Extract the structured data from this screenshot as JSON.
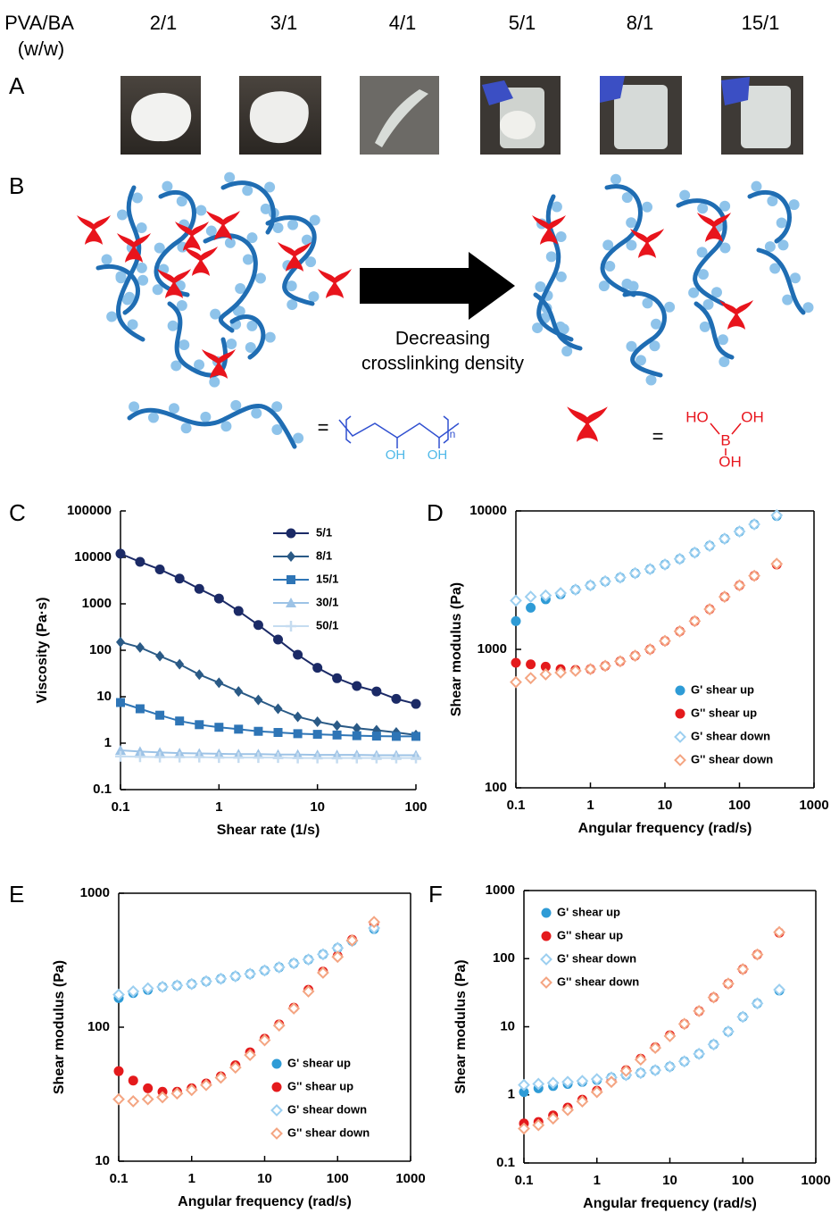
{
  "header": {
    "row_label": "PVA/BA",
    "row_unit": "(w/w)",
    "ratios": [
      "2/1",
      "3/1",
      "4/1",
      "5/1",
      "8/1",
      "15/1"
    ]
  },
  "panel_labels": [
    "A",
    "B",
    "C",
    "D",
    "E",
    "F"
  ],
  "scheme": {
    "arrow_text": [
      "Decreasing",
      "crosslinking density"
    ],
    "equals": "=",
    "pva_oh": "OH",
    "pva_n": "n",
    "ba_ho": "HO",
    "ba_oh": "OH",
    "ba_b": "B"
  },
  "chart_data": [
    {
      "type": "line",
      "x_label": "Shear rate (1/s)",
      "y_label": "Viscosity (Pa·s)",
      "log_x": true,
      "log_y": true,
      "box": false,
      "legend": "upper right",
      "xlim": [
        0.1,
        100
      ],
      "ylim": [
        0.1,
        100000
      ],
      "xticks": [
        0.1,
        1,
        10,
        100
      ],
      "yticks": [
        0.1,
        1,
        10,
        100,
        1000,
        10000,
        100000
      ],
      "x": [
        0.1,
        0.158,
        0.251,
        0.398,
        0.631,
        1,
        1.58,
        2.51,
        3.98,
        6.31,
        10,
        15.8,
        25.1,
        39.8,
        63.1,
        100
      ],
      "series": [
        {
          "name": "5/1",
          "color": "#1b2a66",
          "marker": "circle",
          "values": [
            12000,
            8000,
            5500,
            3500,
            2100,
            1300,
            700,
            350,
            170,
            80,
            42,
            25,
            17,
            13,
            9,
            7
          ]
        },
        {
          "name": "8/1",
          "color": "#2a5a86",
          "marker": "diamond",
          "values": [
            150,
            115,
            75,
            50,
            30,
            20,
            13,
            8.5,
            5.5,
            3.7,
            2.9,
            2.4,
            2.1,
            1.9,
            1.7,
            1.5
          ]
        },
        {
          "name": "15/1",
          "color": "#2e75b6",
          "marker": "square",
          "values": [
            7.5,
            5.5,
            4,
            3,
            2.5,
            2.2,
            2,
            1.8,
            1.7,
            1.6,
            1.55,
            1.5,
            1.45,
            1.42,
            1.4,
            1.4
          ]
        },
        {
          "name": "30/1",
          "color": "#9dc3e6",
          "marker": "triangle",
          "values": [
            0.7,
            0.66,
            0.63,
            0.61,
            0.6,
            0.59,
            0.58,
            0.58,
            0.57,
            0.57,
            0.56,
            0.56,
            0.56,
            0.55,
            0.55,
            0.55
          ]
        },
        {
          "name": "50/1",
          "color": "#c5dcf0",
          "marker": "cross",
          "values": [
            0.52,
            0.51,
            0.5,
            0.5,
            0.5,
            0.49,
            0.49,
            0.49,
            0.49,
            0.48,
            0.48,
            0.48,
            0.48,
            0.48,
            0.48,
            0.48
          ]
        }
      ]
    },
    {
      "type": "scatter",
      "x_label": "Angular frequency (rad/s)",
      "y_label": "Shear modulus (Pa)",
      "log_x": true,
      "log_y": true,
      "box": true,
      "legend": "lower right",
      "xlim": [
        0.1,
        1000
      ],
      "ylim": [
        100,
        10000
      ],
      "xticks": [
        0.1,
        1,
        10,
        100,
        1000
      ],
      "yticks": [
        100,
        1000,
        10000
      ],
      "x": [
        0.1,
        0.158,
        0.251,
        0.398,
        0.631,
        1,
        1.58,
        2.51,
        3.98,
        6.31,
        10,
        15.8,
        25.1,
        39.8,
        63.1,
        100,
        158,
        316
      ],
      "series": [
        {
          "name": "G' shear up",
          "color": "#2e9bd6",
          "marker": "circle",
          "values": [
            1600,
            2000,
            2300,
            2500,
            2700,
            2900,
            3100,
            3300,
            3550,
            3800,
            4100,
            4500,
            5000,
            5600,
            6300,
            7100,
            8000,
            9200
          ]
        },
        {
          "name": "G'' shear up",
          "color": "#e41a1c",
          "marker": "circle",
          "values": [
            800,
            780,
            750,
            720,
            710,
            720,
            760,
            820,
            900,
            1000,
            1150,
            1350,
            1600,
            1950,
            2400,
            2900,
            3400,
            4100
          ]
        },
        {
          "name": "G' shear down",
          "color": "#9ccff0",
          "marker": "diamond-open",
          "values": [
            2250,
            2400,
            2450,
            2550,
            2700,
            2900,
            3100,
            3300,
            3550,
            3800,
            4100,
            4500,
            5000,
            5600,
            6300,
            7100,
            8000,
            9300
          ]
        },
        {
          "name": "G'' shear down",
          "color": "#f4a582",
          "marker": "diamond-open",
          "values": [
            580,
            620,
            660,
            680,
            700,
            720,
            760,
            820,
            900,
            1000,
            1150,
            1350,
            1600,
            1950,
            2400,
            2900,
            3400,
            4150
          ]
        }
      ]
    },
    {
      "type": "scatter",
      "x_label": "Angular frequency (rad/s)",
      "y_label": "Shear modulus (Pa)",
      "log_x": true,
      "log_y": true,
      "box": true,
      "legend": "lower right",
      "xlim": [
        0.1,
        1000
      ],
      "ylim": [
        10,
        1000
      ],
      "xticks": [
        0.1,
        1,
        10,
        100,
        1000
      ],
      "yticks": [
        10,
        100,
        1000
      ],
      "x": [
        0.1,
        0.158,
        0.251,
        0.398,
        0.631,
        1,
        1.58,
        2.51,
        3.98,
        6.31,
        10,
        15.8,
        25.1,
        39.8,
        63.1,
        100,
        158,
        316
      ],
      "series": [
        {
          "name": "G' shear up",
          "color": "#2e9bd6",
          "marker": "circle",
          "values": [
            165,
            180,
            190,
            200,
            205,
            210,
            220,
            230,
            240,
            250,
            265,
            280,
            300,
            320,
            350,
            390,
            440,
            540
          ]
        },
        {
          "name": "G'' shear up",
          "color": "#e41a1c",
          "marker": "circle",
          "values": [
            47,
            40,
            35,
            33,
            33,
            35,
            38,
            43,
            52,
            65,
            82,
            105,
            140,
            190,
            260,
            340,
            450,
            600
          ]
        },
        {
          "name": "G' shear down",
          "color": "#9ccff0",
          "marker": "diamond-open",
          "values": [
            175,
            185,
            195,
            200,
            205,
            210,
            220,
            230,
            240,
            250,
            265,
            280,
            300,
            320,
            350,
            390,
            440,
            550
          ]
        },
        {
          "name": "G'' shear down",
          "color": "#f4a582",
          "marker": "diamond-open",
          "values": [
            29,
            28,
            29,
            30,
            32,
            34,
            37,
            42,
            50,
            62,
            80,
            103,
            138,
            185,
            255,
            335,
            445,
            610
          ]
        }
      ]
    },
    {
      "type": "scatter",
      "x_label": "Angular frequency (rad/s)",
      "y_label": "Shear modulus (Pa)",
      "log_x": true,
      "log_y": true,
      "box": true,
      "legend": "upper left",
      "xlim": [
        0.1,
        1000
      ],
      "ylim": [
        0.1,
        1000
      ],
      "xticks": [
        0.1,
        1,
        10,
        100,
        1000
      ],
      "yticks": [
        0.1,
        1,
        10,
        100,
        1000
      ],
      "x": [
        0.1,
        0.158,
        0.251,
        0.398,
        0.631,
        1,
        1.58,
        2.51,
        3.98,
        6.31,
        10,
        15.8,
        25.1,
        39.8,
        63.1,
        100,
        158,
        316
      ],
      "series": [
        {
          "name": "G' shear up",
          "color": "#2e9bd6",
          "marker": "circle",
          "values": [
            1.1,
            1.25,
            1.35,
            1.45,
            1.55,
            1.65,
            1.8,
            1.95,
            2.1,
            2.3,
            2.6,
            3.1,
            4,
            5.5,
            8.5,
            14,
            22,
            34
          ]
        },
        {
          "name": "G'' shear up",
          "color": "#e41a1c",
          "marker": "circle",
          "values": [
            0.38,
            0.4,
            0.5,
            0.65,
            0.85,
            1.15,
            1.6,
            2.3,
            3.4,
            5,
            7.5,
            11,
            17,
            27,
            43,
            70,
            115,
            240
          ]
        },
        {
          "name": "G' shear down",
          "color": "#9ccff0",
          "marker": "diamond-open",
          "values": [
            1.4,
            1.45,
            1.5,
            1.55,
            1.6,
            1.7,
            1.8,
            1.95,
            2.1,
            2.3,
            2.6,
            3.1,
            4,
            5.5,
            8.5,
            14,
            22,
            35
          ]
        },
        {
          "name": "G'' shear down",
          "color": "#f4a582",
          "marker": "diamond-open",
          "values": [
            0.32,
            0.36,
            0.45,
            0.6,
            0.8,
            1.1,
            1.55,
            2.25,
            3.3,
            4.9,
            7.3,
            11,
            17,
            27,
            43,
            70,
            115,
            245
          ]
        }
      ]
    }
  ]
}
